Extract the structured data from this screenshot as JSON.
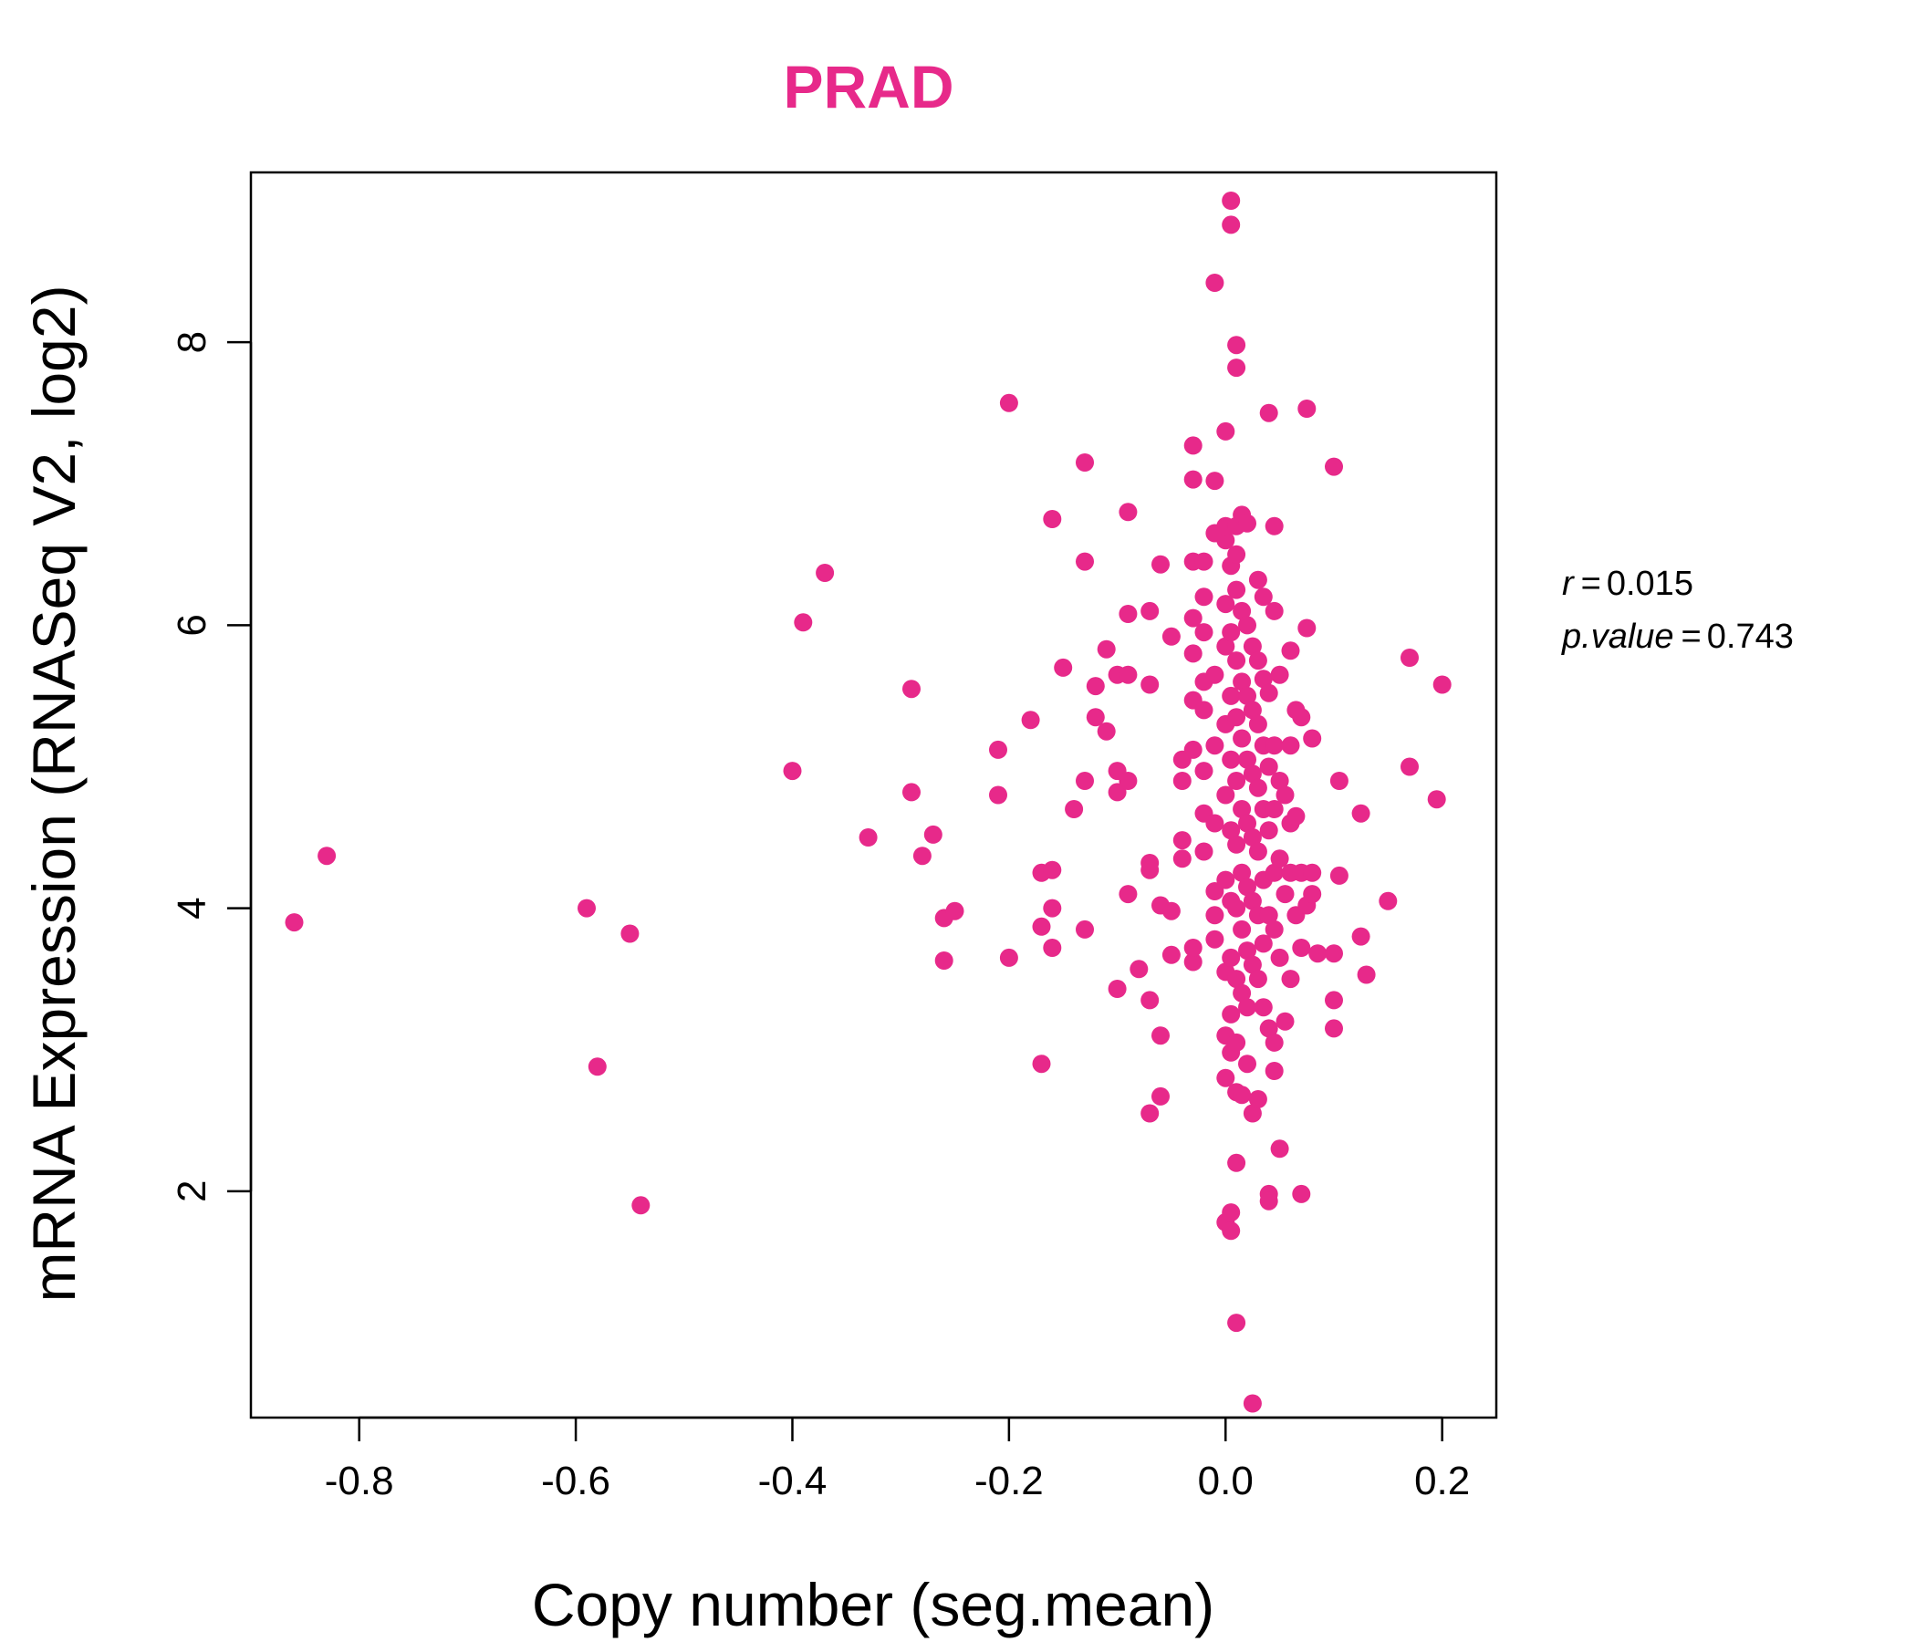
{
  "chart_data": {
    "type": "scatter",
    "title": "PRAD",
    "xlabel": "Copy number (seg.mean)",
    "ylabel": "mRNA Expression (RNASeq V2, log2)",
    "xlim": [
      -0.9,
      0.25
    ],
    "ylim": [
      0.4,
      9.2
    ],
    "x_ticks": [
      -0.8,
      -0.6,
      -0.4,
      -0.2,
      0.0,
      0.2
    ],
    "x_tick_labels": [
      "-0.8",
      "-0.6",
      "-0.4",
      "-0.2",
      "0.0",
      "0.2"
    ],
    "y_ticks": [
      2,
      4,
      6,
      8
    ],
    "y_tick_labels": [
      "2",
      "4",
      "6",
      "8"
    ],
    "grid": false,
    "point_color": "#E7298A",
    "annotations": {
      "r_label": "r",
      "r_value": "0.015",
      "p_label": "p.value",
      "p_value": "0.743"
    },
    "points": [
      [
        -0.86,
        3.9
      ],
      [
        -0.83,
        4.37
      ],
      [
        -0.59,
        4.0
      ],
      [
        -0.58,
        2.88
      ],
      [
        -0.55,
        3.82
      ],
      [
        -0.54,
        1.9
      ],
      [
        -0.4,
        4.97
      ],
      [
        -0.39,
        6.02
      ],
      [
        -0.37,
        6.37
      ],
      [
        -0.33,
        4.5
      ],
      [
        -0.29,
        4.82
      ],
      [
        -0.29,
        5.55
      ],
      [
        -0.28,
        4.37
      ],
      [
        -0.27,
        4.52
      ],
      [
        -0.26,
        3.63
      ],
      [
        -0.26,
        3.93
      ],
      [
        -0.25,
        3.98
      ],
      [
        -0.21,
        5.12
      ],
      [
        -0.21,
        4.8
      ],
      [
        -0.2,
        3.65
      ],
      [
        -0.2,
        7.57
      ],
      [
        -0.18,
        5.33
      ],
      [
        -0.17,
        4.25
      ],
      [
        -0.17,
        3.87
      ],
      [
        -0.17,
        2.9
      ],
      [
        -0.16,
        4.27
      ],
      [
        -0.16,
        4.0
      ],
      [
        -0.16,
        3.72
      ],
      [
        -0.16,
        6.75
      ],
      [
        -0.15,
        5.7
      ],
      [
        -0.14,
        4.7
      ],
      [
        -0.13,
        4.9
      ],
      [
        -0.13,
        7.15
      ],
      [
        -0.13,
        6.45
      ],
      [
        -0.13,
        3.85
      ],
      [
        -0.12,
        5.35
      ],
      [
        -0.12,
        5.57
      ],
      [
        -0.11,
        5.25
      ],
      [
        -0.11,
        5.83
      ],
      [
        -0.1,
        5.65
      ],
      [
        -0.1,
        4.82
      ],
      [
        -0.1,
        4.97
      ],
      [
        -0.1,
        3.43
      ],
      [
        -0.09,
        6.8
      ],
      [
        -0.09,
        6.08
      ],
      [
        -0.09,
        5.65
      ],
      [
        -0.09,
        4.9
      ],
      [
        -0.09,
        4.1
      ],
      [
        -0.08,
        3.57
      ],
      [
        -0.07,
        2.55
      ],
      [
        -0.07,
        3.35
      ],
      [
        -0.07,
        4.27
      ],
      [
        -0.07,
        4.32
      ],
      [
        -0.07,
        5.58
      ],
      [
        -0.07,
        6.1
      ],
      [
        -0.06,
        2.67
      ],
      [
        -0.06,
        6.43
      ],
      [
        -0.06,
        4.02
      ],
      [
        -0.06,
        3.1
      ],
      [
        -0.05,
        3.67
      ],
      [
        -0.05,
        3.98
      ],
      [
        -0.05,
        5.92
      ],
      [
        -0.04,
        5.05
      ],
      [
        -0.04,
        4.9
      ],
      [
        -0.04,
        4.48
      ],
      [
        -0.04,
        4.35
      ],
      [
        -0.03,
        7.27
      ],
      [
        -0.03,
        7.03
      ],
      [
        -0.03,
        6.45
      ],
      [
        -0.03,
        6.05
      ],
      [
        -0.03,
        5.8
      ],
      [
        -0.03,
        5.47
      ],
      [
        -0.03,
        5.12
      ],
      [
        -0.03,
        3.62
      ],
      [
        -0.03,
        3.72
      ],
      [
        -0.02,
        6.45
      ],
      [
        -0.02,
        6.2
      ],
      [
        -0.02,
        5.95
      ],
      [
        -0.02,
        5.6
      ],
      [
        -0.02,
        5.4
      ],
      [
        -0.02,
        4.97
      ],
      [
        -0.02,
        4.67
      ],
      [
        -0.02,
        4.4
      ],
      [
        -0.01,
        4.12
      ],
      [
        -0.01,
        3.78
      ],
      [
        -0.01,
        3.95
      ],
      [
        -0.01,
        4.6
      ],
      [
        -0.01,
        5.15
      ],
      [
        -0.01,
        5.65
      ],
      [
        -0.01,
        8.42
      ],
      [
        -0.01,
        7.02
      ],
      [
        -0.01,
        6.65
      ],
      [
        0.0,
        6.6
      ],
      [
        0.0,
        6.7
      ],
      [
        0.0,
        6.15
      ],
      [
        0.0,
        5.85
      ],
      [
        0.0,
        5.3
      ],
      [
        0.0,
        4.8
      ],
      [
        0.0,
        4.2
      ],
      [
        0.0,
        3.55
      ],
      [
        0.0,
        3.1
      ],
      [
        0.0,
        2.8
      ],
      [
        0.0,
        1.78
      ],
      [
        0.0,
        7.37
      ],
      [
        0.005,
        9.0
      ],
      [
        0.005,
        8.83
      ],
      [
        0.005,
        6.42
      ],
      [
        0.005,
        5.95
      ],
      [
        0.005,
        5.5
      ],
      [
        0.005,
        5.05
      ],
      [
        0.005,
        4.55
      ],
      [
        0.005,
        4.05
      ],
      [
        0.005,
        3.65
      ],
      [
        0.005,
        3.25
      ],
      [
        0.005,
        2.98
      ],
      [
        0.005,
        1.85
      ],
      [
        0.005,
        1.72
      ],
      [
        0.01,
        7.98
      ],
      [
        0.01,
        7.82
      ],
      [
        0.01,
        6.7
      ],
      [
        0.01,
        6.5
      ],
      [
        0.01,
        6.25
      ],
      [
        0.01,
        5.75
      ],
      [
        0.01,
        5.35
      ],
      [
        0.01,
        4.9
      ],
      [
        0.01,
        4.45
      ],
      [
        0.01,
        4.0
      ],
      [
        0.01,
        3.5
      ],
      [
        0.01,
        3.05
      ],
      [
        0.01,
        2.7
      ],
      [
        0.01,
        2.2
      ],
      [
        0.01,
        1.07
      ],
      [
        0.015,
        6.78
      ],
      [
        0.015,
        6.1
      ],
      [
        0.015,
        5.6
      ],
      [
        0.015,
        5.2
      ],
      [
        0.015,
        4.7
      ],
      [
        0.015,
        4.25
      ],
      [
        0.015,
        3.85
      ],
      [
        0.015,
        3.4
      ],
      [
        0.015,
        2.68
      ],
      [
        0.02,
        6.72
      ],
      [
        0.02,
        6.0
      ],
      [
        0.02,
        5.5
      ],
      [
        0.02,
        5.05
      ],
      [
        0.02,
        4.6
      ],
      [
        0.02,
        4.15
      ],
      [
        0.02,
        3.7
      ],
      [
        0.02,
        3.3
      ],
      [
        0.02,
        2.9
      ],
      [
        0.025,
        5.85
      ],
      [
        0.025,
        5.4
      ],
      [
        0.025,
        4.95
      ],
      [
        0.025,
        4.5
      ],
      [
        0.025,
        4.05
      ],
      [
        0.025,
        3.6
      ],
      [
        0.025,
        0.5
      ],
      [
        0.025,
        2.55
      ],
      [
        0.03,
        6.32
      ],
      [
        0.03,
        5.75
      ],
      [
        0.03,
        5.3
      ],
      [
        0.03,
        4.85
      ],
      [
        0.03,
        4.4
      ],
      [
        0.03,
        3.95
      ],
      [
        0.03,
        3.5
      ],
      [
        0.03,
        2.65
      ],
      [
        0.035,
        6.2
      ],
      [
        0.035,
        5.62
      ],
      [
        0.035,
        5.15
      ],
      [
        0.035,
        4.7
      ],
      [
        0.035,
        4.2
      ],
      [
        0.035,
        3.75
      ],
      [
        0.035,
        3.3
      ],
      [
        0.04,
        7.5
      ],
      [
        0.04,
        5.52
      ],
      [
        0.04,
        5.0
      ],
      [
        0.04,
        4.55
      ],
      [
        0.04,
        3.95
      ],
      [
        0.04,
        3.15
      ],
      [
        0.04,
        1.98
      ],
      [
        0.04,
        1.93
      ],
      [
        0.045,
        6.7
      ],
      [
        0.045,
        6.1
      ],
      [
        0.045,
        5.15
      ],
      [
        0.045,
        4.7
      ],
      [
        0.045,
        4.25
      ],
      [
        0.045,
        3.85
      ],
      [
        0.045,
        3.05
      ],
      [
        0.045,
        2.85
      ],
      [
        0.05,
        5.65
      ],
      [
        0.05,
        4.9
      ],
      [
        0.05,
        4.35
      ],
      [
        0.05,
        3.65
      ],
      [
        0.05,
        2.3
      ],
      [
        0.055,
        4.8
      ],
      [
        0.055,
        4.1
      ],
      [
        0.055,
        3.2
      ],
      [
        0.06,
        5.82
      ],
      [
        0.06,
        5.15
      ],
      [
        0.06,
        4.6
      ],
      [
        0.06,
        4.25
      ],
      [
        0.06,
        3.5
      ],
      [
        0.065,
        5.4
      ],
      [
        0.065,
        4.65
      ],
      [
        0.065,
        3.95
      ],
      [
        0.07,
        5.35
      ],
      [
        0.07,
        4.25
      ],
      [
        0.07,
        3.72
      ],
      [
        0.07,
        1.98
      ],
      [
        0.075,
        7.53
      ],
      [
        0.075,
        5.98
      ],
      [
        0.075,
        4.02
      ],
      [
        0.08,
        5.2
      ],
      [
        0.08,
        4.25
      ],
      [
        0.08,
        4.1
      ],
      [
        0.085,
        3.68
      ],
      [
        0.1,
        3.68
      ],
      [
        0.1,
        3.35
      ],
      [
        0.1,
        3.15
      ],
      [
        0.1,
        7.12
      ],
      [
        0.105,
        4.9
      ],
      [
        0.105,
        4.23
      ],
      [
        0.125,
        4.67
      ],
      [
        0.125,
        3.8
      ],
      [
        0.13,
        3.53
      ],
      [
        0.15,
        4.05
      ],
      [
        0.17,
        5.0
      ],
      [
        0.17,
        5.77
      ],
      [
        0.195,
        4.77
      ],
      [
        0.2,
        5.58
      ]
    ]
  }
}
